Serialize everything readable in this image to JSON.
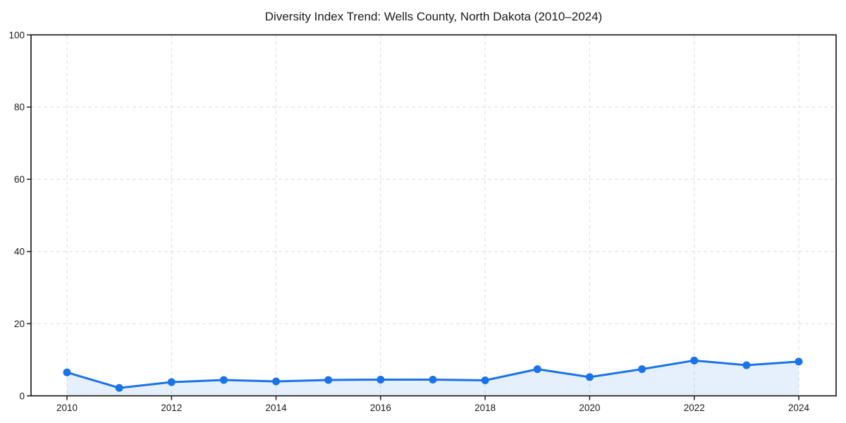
{
  "chart_data": {
    "type": "line",
    "title": "Diversity Index Trend: Wells County, North Dakota (2010–2024)",
    "xlabel": "",
    "ylabel": "",
    "x": [
      2010,
      2011,
      2012,
      2013,
      2014,
      2015,
      2016,
      2017,
      2018,
      2019,
      2020,
      2021,
      2022,
      2023,
      2024
    ],
    "values": [
      6.5,
      2.2,
      3.8,
      4.4,
      4.0,
      4.4,
      4.5,
      4.5,
      4.3,
      7.4,
      5.2,
      7.4,
      9.8,
      8.5,
      9.5
    ],
    "x_tick_values": [
      2010,
      2012,
      2014,
      2016,
      2018,
      2020,
      2022,
      2024
    ],
    "x_tick_labels": [
      "2010",
      "2012",
      "2014",
      "2016",
      "2018",
      "2020",
      "2022",
      "2024"
    ],
    "y_tick_values": [
      0,
      20,
      40,
      60,
      80,
      100
    ],
    "y_tick_labels": [
      "0",
      "20",
      "40",
      "60",
      "80",
      "100"
    ],
    "ylim": [
      0,
      100
    ],
    "grid": true,
    "grid_style": "dashed",
    "legend": "none",
    "marker": "circle",
    "area_fill": true,
    "colors": {
      "line": "#1a73e8",
      "marker": "#1a73e8",
      "area": "rgba(26,115,232,0.11)",
      "grid": "#dcdcdc",
      "spine": "#111111",
      "text": "#1a1a1a",
      "background": "#ffffff"
    }
  }
}
